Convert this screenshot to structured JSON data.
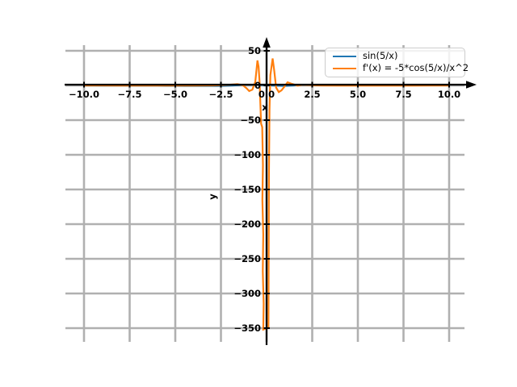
{
  "figure": {
    "background": "#ffffff",
    "title": ""
  },
  "legend": {
    "items": [
      {
        "label": "sin(5/x)",
        "color": "#1f77b4"
      },
      {
        "label": "f'(x) = -5*cos(5/x)/x^2",
        "color": "#ff7f0e"
      }
    ]
  },
  "style": {
    "grid_color": "#b0b0b0",
    "axis_color": "#000000",
    "tick_label_color": "#000000",
    "legend_border_color": "#cccccc"
  },
  "chart_data": {
    "type": "line",
    "title": "",
    "xlabel": "x",
    "ylabel": "y",
    "xlim": [
      -11,
      11
    ],
    "ylim": [
      -372,
      60
    ],
    "grid": true,
    "legend_position": "upper right",
    "x_ticks": {
      "values": [
        -10.0,
        -7.5,
        -5.0,
        -2.5,
        0.0,
        2.5,
        5.0,
        7.5,
        10.0
      ],
      "labels": [
        "−10.0",
        "−7.5",
        "−5.0",
        "−2.5",
        "0.0",
        "2.5",
        "5.0",
        "7.5",
        "10.0"
      ]
    },
    "y_ticks": {
      "values": [
        50,
        0,
        -50,
        -100,
        -150,
        -200,
        -250,
        -300,
        -350
      ],
      "labels": [
        "50",
        "0",
        "−50",
        "−100",
        "−150",
        "−200",
        "−250",
        "−300",
        "−350"
      ]
    },
    "series": [
      {
        "name": "sin(5/x)",
        "color": "#1f77b4",
        "points": [
          [
            -10,
            -0.48
          ],
          [
            -9.5,
            -0.5
          ],
          [
            -9,
            -0.53
          ],
          [
            -8.5,
            -0.56
          ],
          [
            -8,
            -0.59
          ],
          [
            -7.5,
            -0.62
          ],
          [
            -7,
            -0.66
          ],
          [
            -6.5,
            -0.7
          ],
          [
            -6,
            -0.74
          ],
          [
            -5.5,
            -0.79
          ],
          [
            -5,
            -0.84
          ],
          [
            -4.5,
            -0.9
          ],
          [
            -4,
            -0.95
          ],
          [
            -3.5,
            -0.99
          ],
          [
            -3,
            -1.0
          ],
          [
            -2.5,
            -0.91
          ],
          [
            -2,
            -0.6
          ],
          [
            -1.5,
            0.19
          ],
          [
            -1,
            0.96
          ],
          [
            -0.5,
            0.54
          ],
          [
            0.5,
            -0.54
          ],
          [
            1,
            -0.96
          ],
          [
            1.5,
            -0.19
          ],
          [
            2,
            0.6
          ],
          [
            2.5,
            0.91
          ],
          [
            3,
            1.0
          ],
          [
            3.5,
            0.99
          ],
          [
            4,
            0.95
          ],
          [
            4.5,
            0.9
          ],
          [
            5,
            0.84
          ],
          [
            5.5,
            0.79
          ],
          [
            6,
            0.74
          ],
          [
            6.5,
            0.7
          ],
          [
            7,
            0.66
          ],
          [
            7.5,
            0.62
          ],
          [
            8,
            0.59
          ],
          [
            8.5,
            0.56
          ],
          [
            9,
            0.53
          ],
          [
            9.5,
            0.5
          ],
          [
            10,
            0.48
          ]
        ]
      },
      {
        "name": "f'(x) = -5*cos(5/x)/x^2",
        "color": "#ff7f0e",
        "points": [
          [
            -10,
            -0.04
          ],
          [
            -9,
            -0.05
          ],
          [
            -8,
            -0.06
          ],
          [
            -7,
            -0.08
          ],
          [
            -6,
            -0.09
          ],
          [
            -5,
            -0.11
          ],
          [
            -4,
            -0.1
          ],
          [
            -3,
            0.05
          ],
          [
            -2.5,
            0.33
          ],
          [
            -2,
            1.0
          ],
          [
            -1.6,
            1.9
          ],
          [
            -1.3,
            0.3
          ],
          [
            -1.1,
            -4
          ],
          [
            -0.95,
            -8
          ],
          [
            -0.78,
            -6
          ],
          [
            -0.62,
            5
          ],
          [
            -0.5,
            36
          ],
          [
            -0.44,
            27
          ],
          [
            -0.38,
            4
          ],
          [
            -0.3,
            -55
          ],
          [
            -0.24,
            -60
          ],
          [
            -0.2,
            -115
          ],
          [
            -0.23,
            -165
          ],
          [
            -0.18,
            -215
          ],
          [
            -0.21,
            -268
          ],
          [
            -0.16,
            -315
          ],
          [
            -0.18,
            -352
          ],
          [
            0.1,
            -349
          ],
          [
            0.13,
            -130
          ],
          [
            0.16,
            -35
          ],
          [
            0.21,
            15
          ],
          [
            0.33,
            39
          ],
          [
            0.42,
            21
          ],
          [
            0.52,
            -3
          ],
          [
            0.67,
            -9.5
          ],
          [
            0.82,
            -7
          ],
          [
            0.97,
            -2
          ],
          [
            1.15,
            4.5
          ],
          [
            1.4,
            2.2
          ],
          [
            1.7,
            -0.3
          ],
          [
            2,
            1.0
          ],
          [
            2.5,
            0.33
          ],
          [
            3,
            0.05
          ],
          [
            4,
            -0.1
          ],
          [
            5,
            -0.11
          ],
          [
            6,
            -0.09
          ],
          [
            7,
            -0.08
          ],
          [
            8,
            -0.06
          ],
          [
            9,
            -0.05
          ],
          [
            10,
            -0.04
          ]
        ],
        "note": "curve as rendered is aliased near x=0; plotted extremes are about +39 and -352"
      }
    ]
  }
}
